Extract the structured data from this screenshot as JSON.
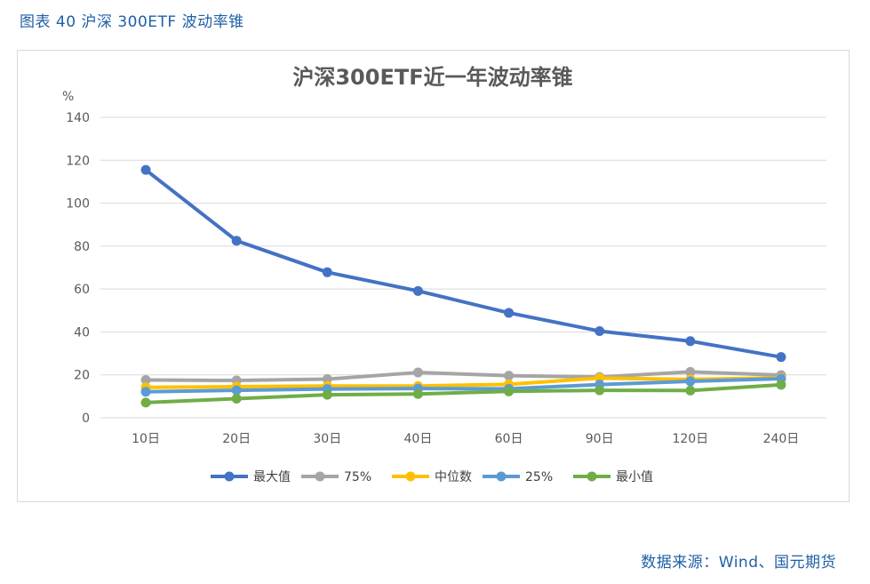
{
  "caption": "图表 40 沪深 300ETF 波动率锥",
  "source": "数据来源：Wind、国元期货",
  "chart_data": {
    "type": "line",
    "title": "沪深300ETF近一年波动率锥",
    "ylabel": "%",
    "xlabel": "",
    "ylim": [
      0,
      140
    ],
    "yticks": [
      0,
      20,
      40,
      60,
      80,
      100,
      120,
      140
    ],
    "grid": true,
    "legend_position": "bottom",
    "categories": [
      "10日",
      "20日",
      "30日",
      "40日",
      "60日",
      "90日",
      "120日",
      "240日"
    ],
    "series": [
      {
        "name": "最大值",
        "color": "#4472c4",
        "values": [
          115.5,
          82.5,
          67.8,
          59.1,
          48.9,
          40.4,
          35.7,
          28.3
        ]
      },
      {
        "name": "75%",
        "color": "#a5a5a5",
        "values": [
          17.6,
          17.4,
          18.0,
          21.1,
          19.6,
          19.0,
          21.4,
          19.9
        ]
      },
      {
        "name": "中位数",
        "color": "#ffc000",
        "values": [
          14.2,
          14.5,
          14.8,
          14.8,
          15.6,
          18.5,
          17.9,
          18.6
        ]
      },
      {
        "name": "25%",
        "color": "#5b9bd5",
        "values": [
          12.1,
          12.8,
          13.4,
          13.6,
          13.5,
          15.5,
          17.0,
          18.2
        ]
      },
      {
        "name": "最小值",
        "color": "#70ad47",
        "values": [
          7.1,
          8.9,
          10.7,
          11.1,
          12.3,
          12.8,
          12.7,
          15.4
        ]
      }
    ]
  }
}
